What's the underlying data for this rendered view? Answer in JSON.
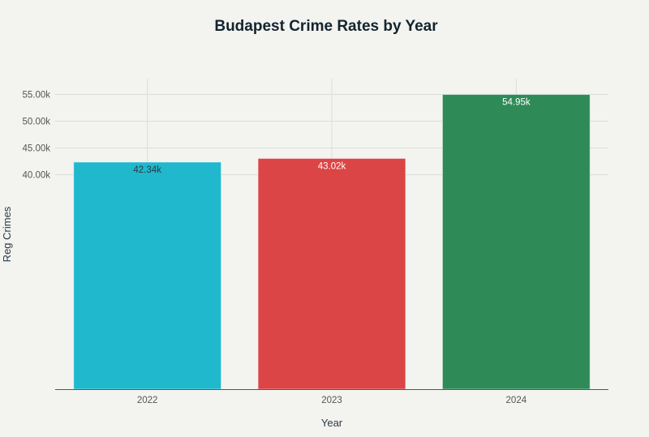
{
  "chart_data": {
    "type": "bar",
    "title": "Budapest Crime Rates by Year",
    "xlabel": "Year",
    "ylabel": "Reg Crimes",
    "categories": [
      "2022",
      "2023",
      "2024"
    ],
    "values": [
      42340,
      43020,
      54950
    ],
    "data_labels": [
      "42.34k",
      "43.02k",
      "54.95k"
    ],
    "colors": [
      "#1FB8CD",
      "#DB4545",
      "#2E8B57"
    ],
    "label_colors": [
      "#2b3a44",
      "#ffffff",
      "#ffffff"
    ],
    "ylim": [
      0,
      57900
    ],
    "yticks": [
      40000,
      45000,
      50000,
      55000
    ],
    "ytick_labels": [
      "40.00k",
      "45.00k",
      "50.00k",
      "55.00k"
    ],
    "grid": true,
    "legend": "none"
  }
}
